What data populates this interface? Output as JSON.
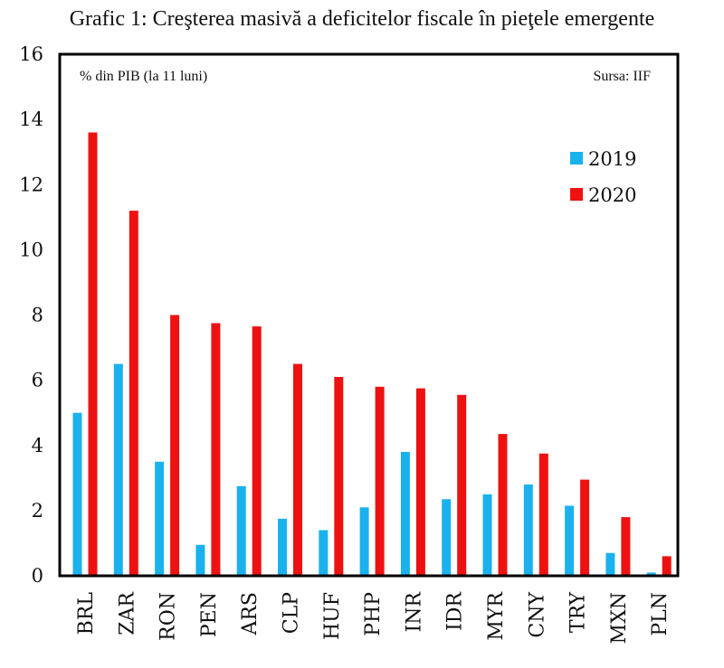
{
  "chart_data": {
    "type": "bar",
    "title": "Grafic 1: Creşterea masivă a deficitelor fiscale în pieţele emergente",
    "unit_note": "% din PIB (la 11 luni)",
    "source_note": "Sursa: IIF",
    "categories": [
      "BRL",
      "ZAR",
      "RON",
      "PEN",
      "ARS",
      "CLP",
      "HUF",
      "PHP",
      "INR",
      "IDR",
      "MYR",
      "CNY",
      "TRY",
      "MXN",
      "PLN"
    ],
    "series": [
      {
        "name": "2019",
        "color": "#1AB2EE",
        "values": [
          5.0,
          6.5,
          3.5,
          0.95,
          2.75,
          1.75,
          1.4,
          2.1,
          3.8,
          2.35,
          2.5,
          2.8,
          2.15,
          0.7,
          0.1
        ]
      },
      {
        "name": "2020",
        "color": "#EE1111",
        "values": [
          13.6,
          11.2,
          8.0,
          7.75,
          7.65,
          6.5,
          6.1,
          5.8,
          5.75,
          5.55,
          4.35,
          3.75,
          2.95,
          1.8,
          0.6
        ]
      }
    ],
    "ylim": [
      0,
      16
    ],
    "yticks": [
      0,
      2,
      4,
      6,
      8,
      10,
      12,
      14,
      16
    ],
    "legend_position": "top-right",
    "grid": false
  }
}
